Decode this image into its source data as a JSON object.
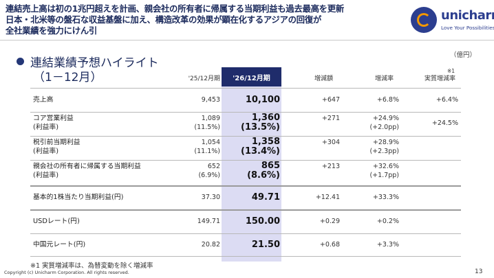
{
  "header": {
    "lines": [
      "連結売上高は初の1兆円超えを計画、親会社の所有者に帰属する当期利益も過去最高を更新",
      "日本・北米等の盤石な収益基盤に加え、構造改革の効果が顕在化するアジアの回復が",
      "全社業績を強力にけん引"
    ]
  },
  "logo": {
    "wordmark": "unicharm",
    "tagline": "Love Your Possibilities"
  },
  "unit": "（億円）",
  "section": {
    "title": "連結業績予想ハイライト",
    "subtitle": "（1－12月）"
  },
  "columns": {
    "prev": "'25/12月期",
    "curr": "'26/12月期",
    "change": "増減額",
    "rate": "増減率",
    "real_rate": "実質増減率",
    "real_rate_note": "※1"
  },
  "rows": [
    {
      "label": "売上高",
      "label2": "",
      "prev": "9,453",
      "prev2": "",
      "curr": "10,100",
      "curr2": "",
      "change": "+647",
      "rate": "+6.8%",
      "rate2": "",
      "real": "+6.4%"
    },
    {
      "label": "コア営業利益",
      "label2": "(利益率)",
      "prev": "1,089",
      "prev2": "(11.5%)",
      "curr": "1,360",
      "curr2": "(13.5%)",
      "change": "+271",
      "rate": "+24.9%",
      "rate2": "(+2.0pp)",
      "real": "+24.5%"
    },
    {
      "label": "税引前当期利益",
      "label2": "(利益率)",
      "prev": "1,054",
      "prev2": "(11.1%)",
      "curr": "1,358",
      "curr2": "(13.4%)",
      "change": "+304",
      "rate": "+28.9%",
      "rate2": "(+2.3pp)",
      "real": ""
    },
    {
      "label": "親会社の所有者に帰属する当期利益",
      "label2": "(利益率)",
      "prev": "652",
      "prev2": "(6.9%)",
      "curr": "865",
      "curr2": "(8.6%)",
      "change": "+213",
      "rate": "+32.6%",
      "rate2": "(+1.7pp)",
      "real": ""
    },
    {
      "label": "基本的1株当たり当期利益(円)",
      "label2": "",
      "prev": "37.30",
      "prev2": "",
      "curr": "49.71",
      "curr2": "",
      "change": "+12.41",
      "rate": "+33.3%",
      "rate2": "",
      "real": ""
    },
    {
      "label": "USDレート(円)",
      "label2": "",
      "prev": "149.71",
      "prev2": "",
      "curr": "150.00",
      "curr2": "",
      "change": "+0.29",
      "rate": "+0.2%",
      "rate2": "",
      "real": ""
    },
    {
      "label": "中国元レート(円)",
      "label2": "",
      "prev": "20.82",
      "prev2": "",
      "curr": "21.50",
      "curr2": "",
      "change": "+0.68",
      "rate": "+3.3%",
      "rate2": "",
      "real": ""
    }
  ],
  "footnote": "※1 実質増減率は、為替変動を除く増減率",
  "copyright": "Copyright (c) Unicharm Corporation. All rights reserved.",
  "page_number": "13"
}
